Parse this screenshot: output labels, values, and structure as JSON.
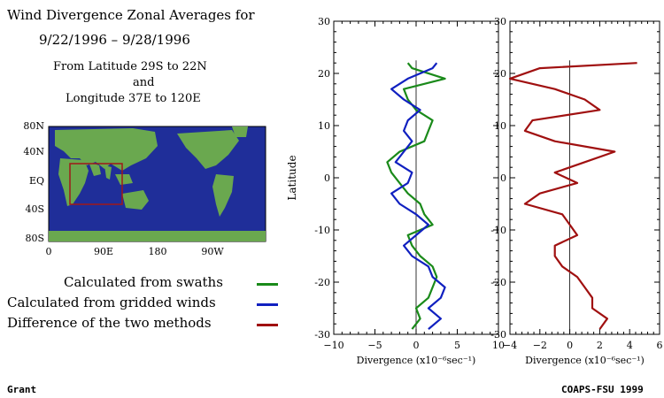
{
  "title": {
    "line1": "Wind Divergence Zonal Averages for",
    "line2": "9/22/1996 – 9/28/1996",
    "region1": "From Latitude 29S to 22N",
    "region2": "and",
    "region3": "Longitude 37E to 120E"
  },
  "map": {
    "lat_labels": [
      "80N",
      "40N",
      "EQ",
      "40S",
      "80S"
    ],
    "lon_labels": [
      "0",
      "90E",
      "180",
      "90W"
    ],
    "ocean_color": "#1f2e99",
    "land_color": "#6aa84f",
    "box_color": "#a01818"
  },
  "legend": [
    {
      "label": "Calculated from swaths",
      "color": "#1a8a1a"
    },
    {
      "label": "Calculated from gridded winds",
      "color": "#1020c0"
    },
    {
      "label": "Difference of the two methods",
      "color": "#a01010"
    }
  ],
  "footer": {
    "left": "Grant",
    "right": "COAPS-FSU 1999"
  },
  "chart_data": [
    {
      "type": "line",
      "ylabel": "Latitude",
      "xlabel": "Divergence (x10⁻⁶sec⁻¹)",
      "xlim": [
        -10,
        10
      ],
      "ylim": [
        -30,
        30
      ],
      "xticks": [
        -10,
        -5,
        0,
        5,
        10
      ],
      "yticks": [
        -30,
        -20,
        -10,
        0,
        10,
        20,
        30
      ],
      "series": [
        {
          "name": "Calculated from swaths",
          "color": "#1a8a1a",
          "lat": [
            -29,
            -27,
            -25,
            -23,
            -21,
            -19,
            -17,
            -15,
            -13,
            -11,
            -9,
            -7,
            -5,
            -3,
            -1,
            1,
            3,
            5,
            7,
            9,
            11,
            13,
            15,
            17,
            19,
            21,
            22
          ],
          "values": [
            -0.5,
            0.5,
            0,
            1.5,
            2,
            2.5,
            2,
            0.5,
            -0.5,
            -1,
            2,
            1,
            0.5,
            -1,
            -2,
            -3,
            -3.5,
            -2,
            1,
            1.5,
            2,
            0,
            -1,
            -1.5,
            3.5,
            -0.5,
            -1
          ]
        },
        {
          "name": "Calculated from gridded winds",
          "color": "#1020c0",
          "lat": [
            -29,
            -27,
            -25,
            -23,
            -21,
            -19,
            -17,
            -15,
            -13,
            -11,
            -9,
            -7,
            -5,
            -3,
            -1,
            1,
            3,
            5,
            7,
            9,
            11,
            13,
            15,
            17,
            19,
            21,
            22
          ],
          "values": [
            1.5,
            3,
            1.5,
            3,
            3.5,
            2,
            1.5,
            -0.5,
            -1.5,
            0,
            1.5,
            0,
            -2,
            -3,
            -1,
            -0.5,
            -2.5,
            -1.5,
            -0.5,
            -1.5,
            -1,
            0.5,
            -1.5,
            -3,
            -1,
            2,
            2.5
          ]
        }
      ]
    },
    {
      "type": "line",
      "xlabel": "Divergence (x10⁻⁶sec⁻¹)",
      "xlim": [
        -4,
        6
      ],
      "ylim": [
        -30,
        30
      ],
      "xticks": [
        -4,
        -2,
        0,
        2,
        4,
        6
      ],
      "yticks": [
        -30,
        -20,
        -10,
        0,
        10,
        20,
        30
      ],
      "series": [
        {
          "name": "Difference of the two methods",
          "color": "#a01010",
          "lat": [
            -29,
            -27,
            -25,
            -23,
            -21,
            -19,
            -17,
            -15,
            -13,
            -11,
            -9,
            -7,
            -5,
            -3,
            -1,
            1,
            3,
            5,
            7,
            9,
            11,
            13,
            15,
            17,
            19,
            21,
            22
          ],
          "values": [
            2,
            2.5,
            1.5,
            1.5,
            1,
            0.5,
            -0.5,
            -1,
            -1,
            0.5,
            0,
            -0.5,
            -3,
            -2,
            0.5,
            -1,
            1,
            3,
            -1,
            -3,
            -2.5,
            2,
            1,
            -1,
            -4,
            -2,
            4.5
          ]
        }
      ]
    }
  ]
}
